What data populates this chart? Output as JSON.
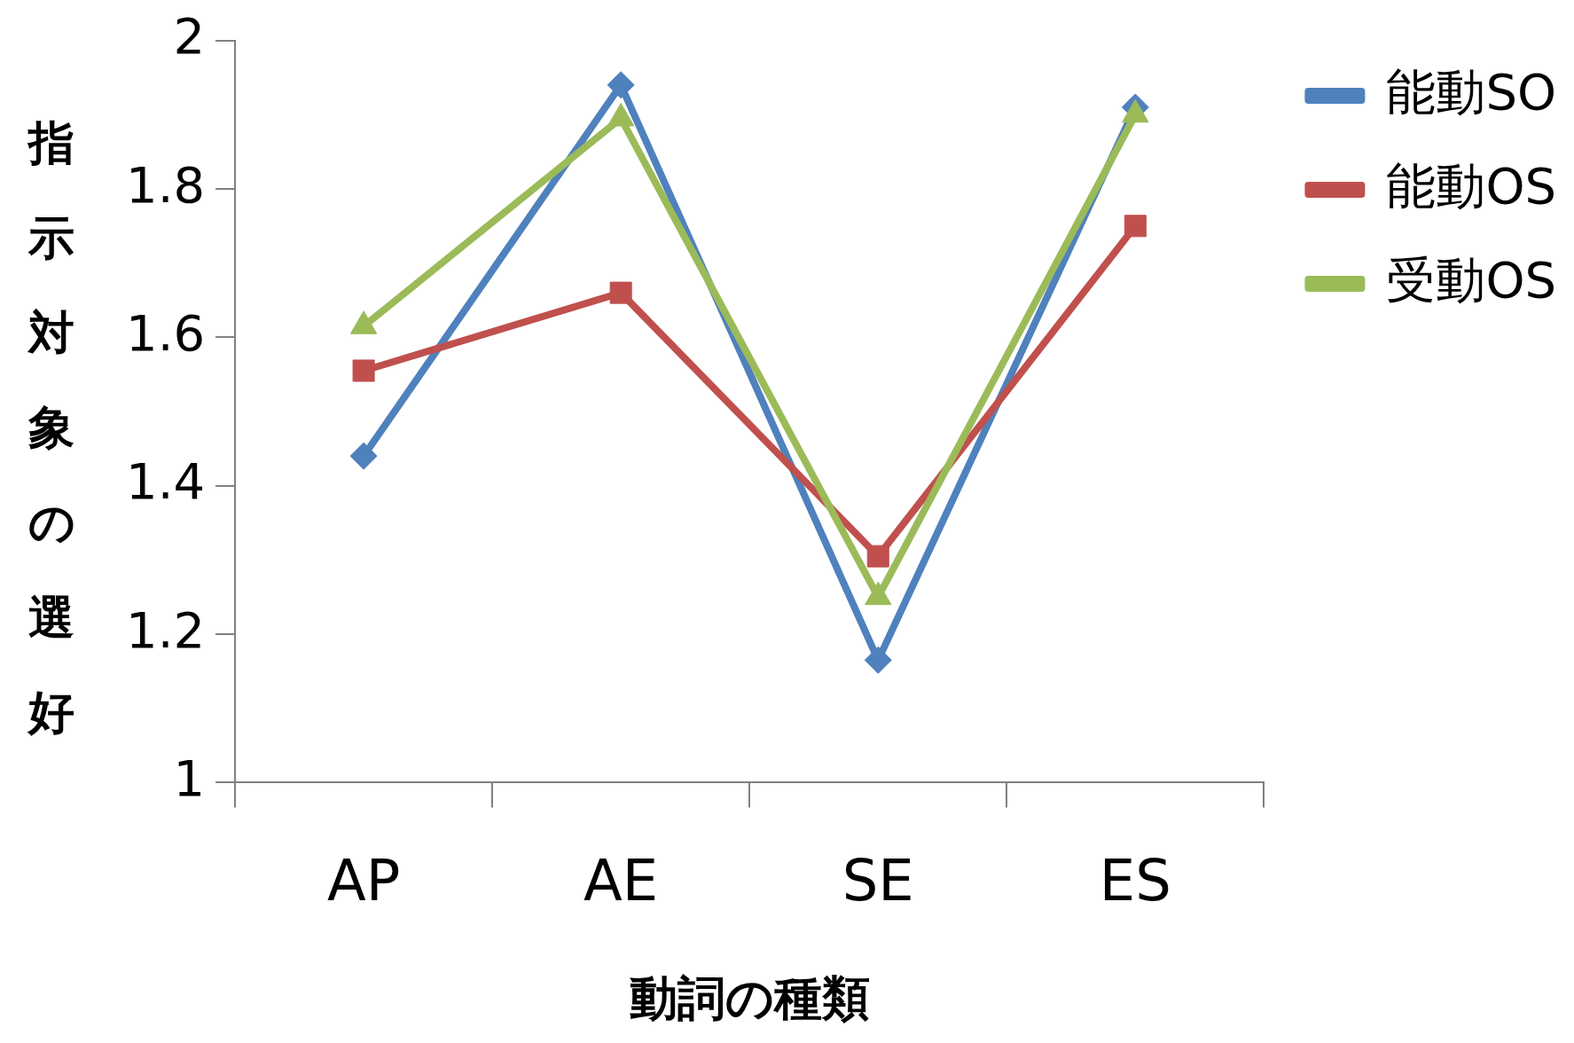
{
  "chart_data": {
    "type": "line",
    "xlabel": "動詞の種類",
    "ylabel": "指示対象の選好",
    "categories": [
      "AP",
      "AE",
      "SE",
      "ES"
    ],
    "series": [
      {
        "name": "能動SO",
        "color": "#4f81bd",
        "marker": "diamond",
        "values": [
          1.44,
          1.94,
          1.165,
          1.91
        ]
      },
      {
        "name": "能動OS",
        "color": "#c0504d",
        "marker": "square",
        "values": [
          1.555,
          1.66,
          1.305,
          1.75
        ]
      },
      {
        "name": "受動OS",
        "color": "#9bbb59",
        "marker": "triangle",
        "values": [
          1.615,
          1.895,
          1.25,
          1.9
        ]
      }
    ],
    "ylim": [
      1,
      2
    ],
    "yticks": [
      1,
      1.2,
      1.4,
      1.6,
      1.8,
      2
    ],
    "grid": false,
    "legend": "right"
  }
}
